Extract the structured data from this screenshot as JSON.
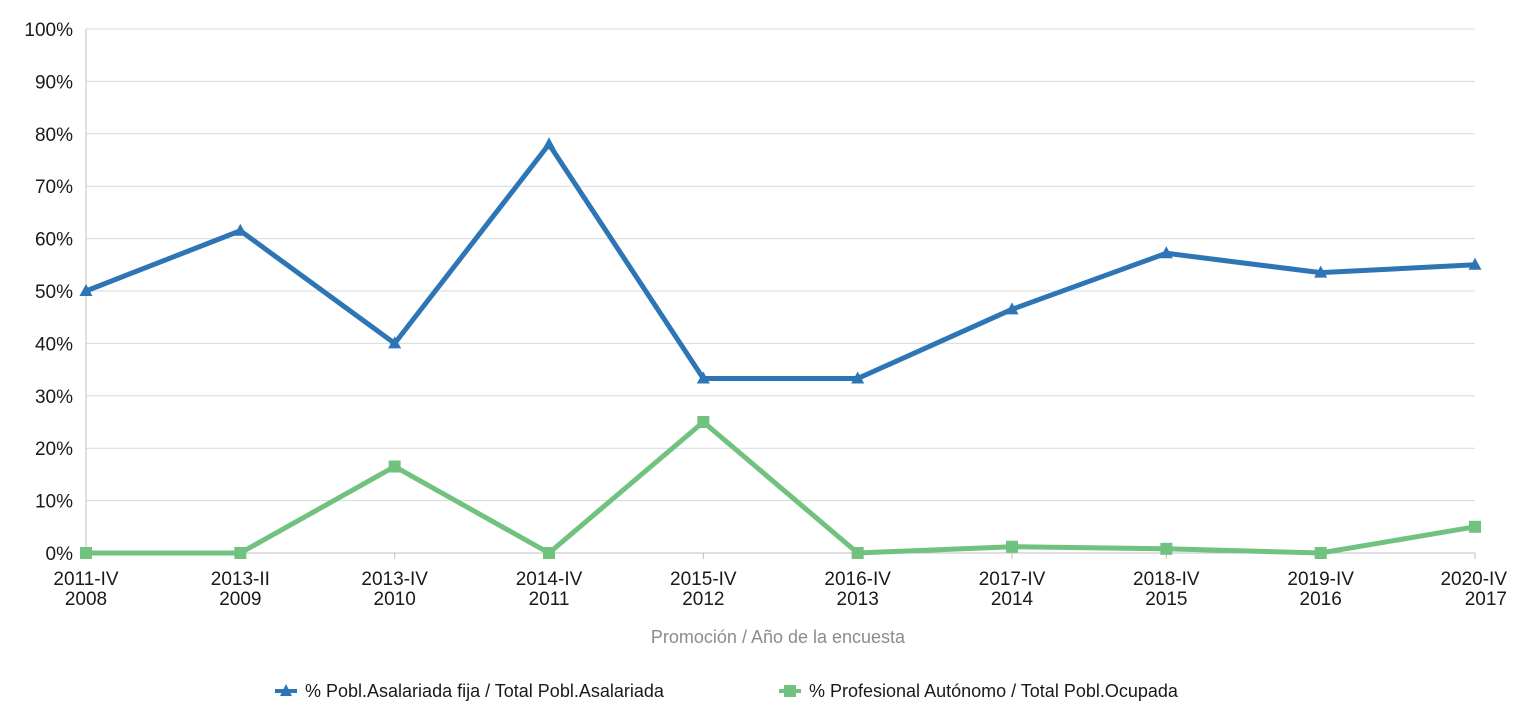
{
  "chart_data": {
    "type": "line",
    "categories": [
      [
        "2011-IV",
        "2008"
      ],
      [
        "2013-II",
        "2009"
      ],
      [
        "2013-IV",
        "2010"
      ],
      [
        "2014-IV",
        "2011"
      ],
      [
        "2015-IV",
        "2012"
      ],
      [
        "2016-IV",
        "2013"
      ],
      [
        "2017-IV",
        "2014"
      ],
      [
        "2018-IV",
        "2015"
      ],
      [
        "2019-IV",
        "2016"
      ],
      [
        "2020-IV",
        "2017"
      ]
    ],
    "series": [
      {
        "name": "% Pobl.Asalariada fija / Total Pobl.Asalariada",
        "color": "#2e75b6",
        "marker": "triangle",
        "values": [
          50.0,
          61.5,
          40.0,
          78.0,
          33.3,
          33.3,
          46.5,
          57.2,
          53.5,
          55.0
        ]
      },
      {
        "name": "% Profesional Autónomo / Total Pobl.Ocupada",
        "color": "#70c27e",
        "marker": "square",
        "values": [
          0.0,
          0.0,
          16.5,
          0.0,
          25.0,
          0.0,
          1.2,
          0.8,
          0.0,
          5.0
        ]
      }
    ],
    "xlabel": "Promoción / Año de la encuesta",
    "ylabel": "",
    "ylim": [
      0,
      100
    ],
    "yticks": [
      "0%",
      "10%",
      "20%",
      "30%",
      "40%",
      "50%",
      "60%",
      "70%",
      "80%",
      "90%",
      "100%"
    ],
    "grid": true,
    "legend": "bottom"
  }
}
